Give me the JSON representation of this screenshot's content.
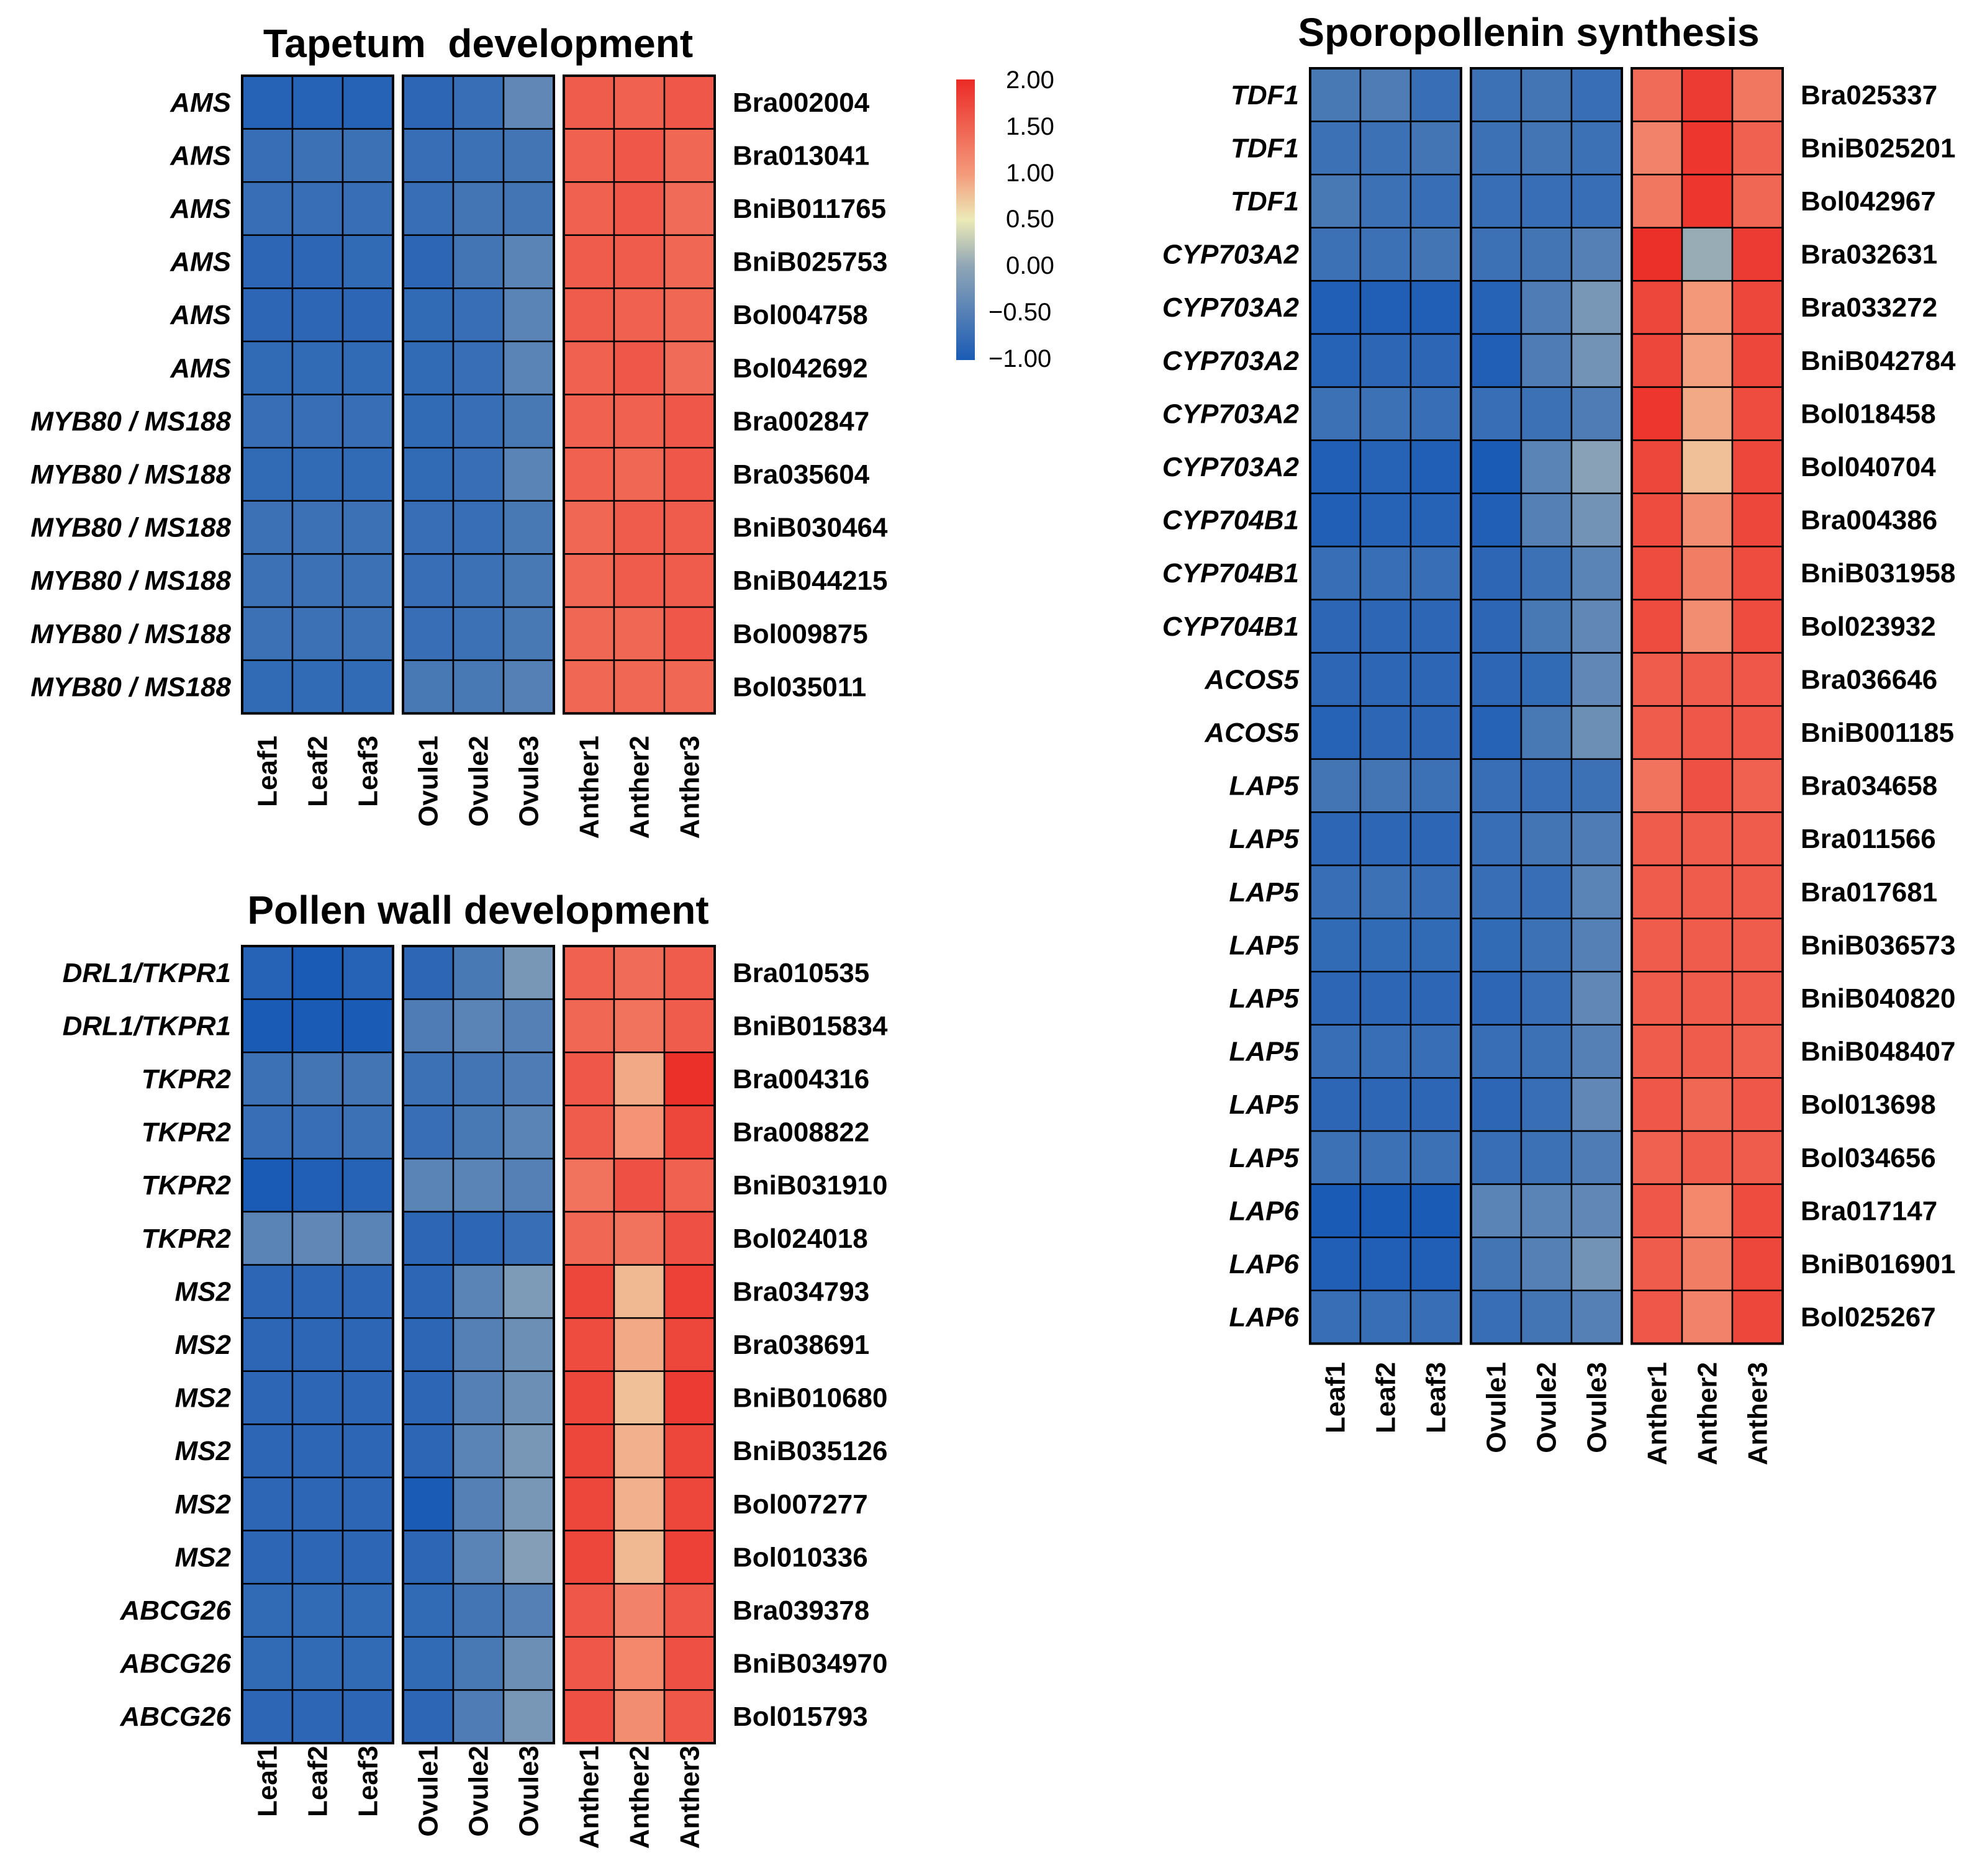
{
  "colors": {
    "low": "#1a5bb5",
    "mid": "#ecebb7",
    "high": "#eb2b26",
    "border": "#000000"
  },
  "legend": {
    "ticks": [
      "2.00",
      "1.50",
      "1.00",
      "0.50",
      "0.00",
      "−0.50",
      "−1.00"
    ],
    "min": -1.0,
    "max": 2.0
  },
  "chart_data": [
    {
      "type": "heatmap",
      "title": "Tapetum  development",
      "groups": [
        {
          "name": "Leaf",
          "columns": [
            "Leaf1",
            "Leaf2",
            "Leaf3"
          ]
        },
        {
          "name": "Ovule",
          "columns": [
            "Ovule1",
            "Ovule2",
            "Ovule3"
          ]
        },
        {
          "name": "Anther",
          "columns": [
            "Anther1",
            "Anther2",
            "Anther3"
          ]
        }
      ],
      "rows": [
        {
          "gene": "AMS",
          "id": "Bra002004",
          "values": [
            -0.9,
            -0.9,
            -0.9,
            -0.85,
            -0.75,
            -0.4,
            1.55,
            1.5,
            1.6
          ]
        },
        {
          "gene": "AMS",
          "id": "Bra013041",
          "values": [
            -0.75,
            -0.7,
            -0.7,
            -0.75,
            -0.7,
            -0.65,
            1.5,
            1.6,
            1.45
          ]
        },
        {
          "gene": "AMS",
          "id": "BniB011765",
          "values": [
            -0.75,
            -0.75,
            -0.75,
            -0.75,
            -0.65,
            -0.65,
            1.5,
            1.6,
            1.4
          ]
        },
        {
          "gene": "AMS",
          "id": "BniB025753",
          "values": [
            -0.85,
            -0.85,
            -0.8,
            -0.85,
            -0.65,
            -0.45,
            1.55,
            1.55,
            1.45
          ]
        },
        {
          "gene": "AMS",
          "id": "Bol004758",
          "values": [
            -0.85,
            -0.85,
            -0.85,
            -0.8,
            -0.75,
            -0.45,
            1.55,
            1.5,
            1.45
          ]
        },
        {
          "gene": "AMS",
          "id": "Bol042692",
          "values": [
            -0.8,
            -0.8,
            -0.8,
            -0.8,
            -0.75,
            -0.45,
            1.5,
            1.6,
            1.4
          ]
        },
        {
          "gene": "MYB80 / MS188",
          "id": "Bra002847",
          "values": [
            -0.75,
            -0.75,
            -0.75,
            -0.8,
            -0.75,
            -0.6,
            1.5,
            1.5,
            1.6
          ]
        },
        {
          "gene": "MYB80 / MS188",
          "id": "Bra035604",
          "values": [
            -0.8,
            -0.8,
            -0.8,
            -0.8,
            -0.75,
            -0.45,
            1.5,
            1.45,
            1.6
          ]
        },
        {
          "gene": "MYB80 / MS188",
          "id": "BniB030464",
          "values": [
            -0.7,
            -0.7,
            -0.7,
            -0.75,
            -0.75,
            -0.6,
            1.45,
            1.55,
            1.55
          ]
        },
        {
          "gene": "MYB80 / MS188",
          "id": "BniB044215",
          "values": [
            -0.7,
            -0.7,
            -0.7,
            -0.75,
            -0.7,
            -0.6,
            1.45,
            1.55,
            1.55
          ]
        },
        {
          "gene": "MYB80 / MS188",
          "id": "Bol009875",
          "values": [
            -0.7,
            -0.7,
            -0.7,
            -0.75,
            -0.7,
            -0.6,
            1.45,
            1.45,
            1.6
          ]
        },
        {
          "gene": "MYB80 / MS188",
          "id": "Bol035011",
          "values": [
            -0.8,
            -0.8,
            -0.8,
            -0.6,
            -0.6,
            -0.5,
            1.45,
            1.45,
            1.45
          ]
        }
      ]
    },
    {
      "type": "heatmap",
      "title": "Pollen wall development",
      "groups": [
        {
          "name": "Leaf",
          "columns": [
            "Leaf1",
            "Leaf2",
            "Leaf3"
          ]
        },
        {
          "name": "Ovule",
          "columns": [
            "Ovule1",
            "Ovule2",
            "Ovule3"
          ]
        },
        {
          "name": "Anther",
          "columns": [
            "Anther1",
            "Anther2",
            "Anther3"
          ]
        }
      ],
      "rows": [
        {
          "gene": "DRL1/TKPR1",
          "id": "Bra010535",
          "values": [
            -0.9,
            -1.0,
            -0.9,
            -0.85,
            -0.6,
            -0.2,
            1.5,
            1.4,
            1.55
          ]
        },
        {
          "gene": "DRL1/TKPR1",
          "id": "BniB015834",
          "values": [
            -1.0,
            -1.0,
            -1.0,
            -0.55,
            -0.45,
            -0.5,
            1.45,
            1.35,
            1.55
          ]
        },
        {
          "gene": "TKPR2",
          "id": "Bra004316",
          "values": [
            -0.7,
            -0.65,
            -0.65,
            -0.7,
            -0.65,
            -0.55,
            1.6,
            0.9,
            1.95
          ]
        },
        {
          "gene": "TKPR2",
          "id": "Bra008822",
          "values": [
            -0.75,
            -0.75,
            -0.7,
            -0.75,
            -0.6,
            -0.45,
            1.55,
            1.05,
            1.75
          ]
        },
        {
          "gene": "TKPR2",
          "id": "BniB031910",
          "values": [
            -1.0,
            -0.95,
            -0.9,
            -0.45,
            -0.45,
            -0.5,
            1.35,
            1.65,
            1.5
          ]
        },
        {
          "gene": "TKPR2",
          "id": "Bol024018",
          "values": [
            -0.45,
            -0.4,
            -0.45,
            -0.85,
            -0.85,
            -0.75,
            1.45,
            1.35,
            1.65
          ]
        },
        {
          "gene": "MS2",
          "id": "Bra034793",
          "values": [
            -0.85,
            -0.85,
            -0.85,
            -0.85,
            -0.45,
            -0.15,
            1.75,
            0.8,
            1.8
          ]
        },
        {
          "gene": "MS2",
          "id": "Bra038691",
          "values": [
            -0.85,
            -0.85,
            -0.85,
            -0.85,
            -0.5,
            -0.3,
            1.7,
            0.9,
            1.75
          ]
        },
        {
          "gene": "MS2",
          "id": "BniB010680",
          "values": [
            -0.85,
            -0.85,
            -0.85,
            -0.85,
            -0.5,
            -0.3,
            1.75,
            0.75,
            1.85
          ]
        },
        {
          "gene": "MS2",
          "id": "BniB035126",
          "values": [
            -0.85,
            -0.85,
            -0.85,
            -0.85,
            -0.45,
            -0.2,
            1.75,
            0.85,
            1.75
          ]
        },
        {
          "gene": "MS2",
          "id": "Bol007277",
          "values": [
            -0.85,
            -0.85,
            -0.85,
            -1.0,
            -0.5,
            -0.2,
            1.75,
            0.85,
            1.75
          ]
        },
        {
          "gene": "MS2",
          "id": "Bol010336",
          "values": [
            -0.85,
            -0.85,
            -0.85,
            -0.85,
            -0.45,
            -0.1,
            1.75,
            0.8,
            1.8
          ]
        },
        {
          "gene": "ABCG26",
          "id": "Bra039378",
          "values": [
            -0.8,
            -0.8,
            -0.8,
            -0.8,
            -0.65,
            -0.5,
            1.6,
            1.2,
            1.6
          ]
        },
        {
          "gene": "ABCG26",
          "id": "BniB034970",
          "values": [
            -0.8,
            -0.8,
            -0.8,
            -0.8,
            -0.6,
            -0.3,
            1.6,
            1.15,
            1.65
          ]
        },
        {
          "gene": "ABCG26",
          "id": "Bol015793",
          "values": [
            -0.85,
            -0.85,
            -0.85,
            -0.85,
            -0.55,
            -0.2,
            1.65,
            1.1,
            1.6
          ]
        }
      ]
    },
    {
      "type": "heatmap",
      "title": "Sporopollenin synthesis",
      "groups": [
        {
          "name": "Leaf",
          "columns": [
            "Leaf1",
            "Leaf2",
            "Leaf3"
          ]
        },
        {
          "name": "Ovule",
          "columns": [
            "Ovule1",
            "Ovule2",
            "Ovule3"
          ]
        },
        {
          "name": "Anther",
          "columns": [
            "Anther1",
            "Anther2",
            "Anther3"
          ]
        }
      ],
      "rows": [
        {
          "gene": "TDF1",
          "id": "Bra025337",
          "values": [
            -0.6,
            -0.55,
            -0.75,
            -0.7,
            -0.65,
            -0.75,
            1.4,
            1.85,
            1.3
          ]
        },
        {
          "gene": "TDF1",
          "id": "BniB025201",
          "values": [
            -0.7,
            -0.7,
            -0.65,
            -0.7,
            -0.65,
            -0.7,
            1.2,
            1.9,
            1.5
          ]
        },
        {
          "gene": "TDF1",
          "id": "Bol042967",
          "values": [
            -0.6,
            -0.7,
            -0.75,
            -0.75,
            -0.75,
            -0.75,
            1.3,
            1.9,
            1.45
          ]
        },
        {
          "gene": "CYP703A2",
          "id": "Bra032631",
          "values": [
            -0.7,
            -0.7,
            -0.65,
            -0.7,
            -0.65,
            -0.5,
            1.95,
            0.05,
            1.85
          ]
        },
        {
          "gene": "CYP703A2",
          "id": "Bra033272",
          "values": [
            -0.95,
            -0.95,
            -0.95,
            -0.9,
            -0.55,
            -0.2,
            1.75,
            1.0,
            1.75
          ]
        },
        {
          "gene": "CYP703A2",
          "id": "BniB042784",
          "values": [
            -0.9,
            -0.85,
            -0.85,
            -0.95,
            -0.55,
            -0.25,
            1.75,
            0.95,
            1.75
          ]
        },
        {
          "gene": "CYP703A2",
          "id": "Bol018458",
          "values": [
            -0.7,
            -0.7,
            -0.75,
            -0.75,
            -0.7,
            -0.55,
            1.9,
            0.9,
            1.7
          ]
        },
        {
          "gene": "CYP703A2",
          "id": "Bol040704",
          "values": [
            -0.95,
            -0.9,
            -0.95,
            -1.0,
            -0.45,
            -0.05,
            1.75,
            0.75,
            1.75
          ]
        },
        {
          "gene": "CYP704B1",
          "id": "Bra004386",
          "values": [
            -0.95,
            -0.9,
            -0.9,
            -0.95,
            -0.5,
            -0.25,
            1.7,
            1.1,
            1.75
          ]
        },
        {
          "gene": "CYP704B1",
          "id": "BniB031958",
          "values": [
            -0.75,
            -0.75,
            -0.75,
            -0.85,
            -0.7,
            -0.45,
            1.7,
            1.25,
            1.7
          ]
        },
        {
          "gene": "CYP704B1",
          "id": "Bol023932",
          "values": [
            -0.85,
            -0.85,
            -0.85,
            -0.85,
            -0.6,
            -0.4,
            1.7,
            1.1,
            1.7
          ]
        },
        {
          "gene": "ACOS5",
          "id": "Bra036646",
          "values": [
            -0.85,
            -0.85,
            -0.85,
            -0.85,
            -0.8,
            -0.4,
            1.55,
            1.55,
            1.6
          ]
        },
        {
          "gene": "ACOS5",
          "id": "BniB001185",
          "values": [
            -0.9,
            -0.85,
            -0.85,
            -0.9,
            -0.6,
            -0.3,
            1.55,
            1.6,
            1.6
          ]
        },
        {
          "gene": "LAP5",
          "id": "Bra034658",
          "values": [
            -0.65,
            -0.65,
            -0.7,
            -0.75,
            -0.75,
            -0.7,
            1.35,
            1.65,
            1.5
          ]
        },
        {
          "gene": "LAP5",
          "id": "Bra011566",
          "values": [
            -0.85,
            -0.85,
            -0.85,
            -0.75,
            -0.65,
            -0.55,
            1.55,
            1.55,
            1.55
          ]
        },
        {
          "gene": "LAP5",
          "id": "Bra017681",
          "values": [
            -0.75,
            -0.7,
            -0.75,
            -0.75,
            -0.75,
            -0.45,
            1.55,
            1.55,
            1.55
          ]
        },
        {
          "gene": "LAP5",
          "id": "BniB036573",
          "values": [
            -0.8,
            -0.8,
            -0.8,
            -0.8,
            -0.7,
            -0.5,
            1.55,
            1.55,
            1.55
          ]
        },
        {
          "gene": "LAP5",
          "id": "BniB040820",
          "values": [
            -0.85,
            -0.85,
            -0.85,
            -0.85,
            -0.75,
            -0.4,
            1.55,
            1.55,
            1.55
          ]
        },
        {
          "gene": "LAP5",
          "id": "BniB048407",
          "values": [
            -0.75,
            -0.75,
            -0.75,
            -0.75,
            -0.7,
            -0.5,
            1.55,
            1.55,
            1.5
          ]
        },
        {
          "gene": "LAP5",
          "id": "Bol013698",
          "values": [
            -0.85,
            -0.85,
            -0.85,
            -0.85,
            -0.75,
            -0.4,
            1.6,
            1.45,
            1.6
          ]
        },
        {
          "gene": "LAP5",
          "id": "Bol034656",
          "values": [
            -0.7,
            -0.7,
            -0.7,
            -0.75,
            -0.7,
            -0.55,
            1.5,
            1.55,
            1.55
          ]
        },
        {
          "gene": "LAP6",
          "id": "Bra017147",
          "values": [
            -1.0,
            -1.0,
            -1.0,
            -0.45,
            -0.45,
            -0.4,
            1.6,
            1.15,
            1.7
          ]
        },
        {
          "gene": "LAP6",
          "id": "BniB016901",
          "values": [
            -0.95,
            -0.95,
            -0.95,
            -0.65,
            -0.5,
            -0.25,
            1.55,
            1.25,
            1.75
          ]
        },
        {
          "gene": "LAP6",
          "id": "Bol025267",
          "values": [
            -0.75,
            -0.75,
            -0.75,
            -0.75,
            -0.65,
            -0.5,
            1.6,
            1.2,
            1.75
          ]
        }
      ]
    }
  ]
}
